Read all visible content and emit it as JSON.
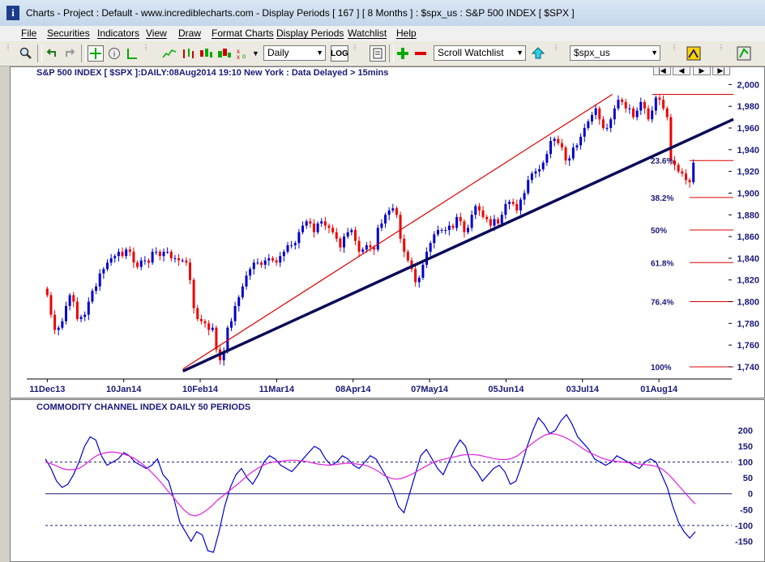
{
  "window": {
    "title": "Charts - Project : Default - www.incrediblecharts.com - Display Periods  [ 167 ]  [ 8 Months ] : $spx_us : S&P 500 INDEX  [ $SPX ]"
  },
  "menu": [
    "File",
    "Securities",
    "Indicators",
    "View",
    "Draw",
    "Format Charts",
    "Display Periods",
    "Watchlist",
    "Help"
  ],
  "toolbar": {
    "period_select": "Daily",
    "watchlist_select": "Scroll Watchlist",
    "security_select": "$spx_us",
    "icons": [
      "zoom-icon",
      "undo-icon",
      "redo-icon",
      "crosshair-icon",
      "info-icon",
      "trendline-icon",
      "line-chart-icon",
      "bar-chart-icon",
      "candlestick-icon",
      "equivolume-icon",
      "log-scale-icon",
      "page-icon",
      "add-security-icon",
      "remove-security-icon",
      "up-arrow-icon",
      "watchlist-tool-icon",
      "chart-tool-icon"
    ]
  },
  "navigation": [
    "|◀",
    "◀",
    "▶",
    "▶|"
  ],
  "pane_numbers": {
    "price": "1",
    "cci_top": "1",
    "cci_bottom": "2"
  },
  "chart_data": [
    {
      "type": "candlestick",
      "title": "S&P 500 INDEX [ $SPX ]:DAILY:08Aug2014 19:10 New York : Data Delayed > 15mins",
      "x_tick_labels": [
        "11Dec13",
        "10Jan14",
        "10Feb14",
        "11Mar14",
        "08Apr14",
        "07May14",
        "05Jun14",
        "03Jul14",
        "01Aug14"
      ],
      "y_tick_labels": [
        "1,740",
        "1,760",
        "1,780",
        "1,800",
        "1,820",
        "1,840",
        "1,860",
        "1,880",
        "1,900",
        "1,920",
        "1,940",
        "1,960",
        "1,980",
        "2,000"
      ],
      "ylim": [
        1734,
        2010
      ],
      "up_color": "#0000cc",
      "down_color": "#ee0000",
      "series": [
        {
          "closes": [
            1806,
            1788,
            1774,
            1776,
            1782,
            1796,
            1806,
            1800,
            1784,
            1786,
            1788,
            1800,
            1810,
            1814,
            1826,
            1830,
            1836,
            1840,
            1842,
            1846,
            1842,
            1848,
            1846,
            1836,
            1832,
            1838,
            1838,
            1836,
            1846,
            1846,
            1842,
            1846,
            1846,
            1840,
            1840,
            1838,
            1838,
            1836,
            1820,
            1794,
            1784,
            1782,
            1780,
            1774,
            1776,
            1756,
            1746,
            1754,
            1776,
            1782,
            1796,
            1804,
            1814,
            1824,
            1830,
            1836,
            1836,
            1834,
            1838,
            1840,
            1838,
            1836,
            1842,
            1846,
            1852,
            1852,
            1854,
            1864,
            1870,
            1874,
            1872,
            1864,
            1872,
            1874,
            1870,
            1868,
            1864,
            1858,
            1850,
            1860,
            1864,
            1866,
            1856,
            1846,
            1848,
            1852,
            1850,
            1848,
            1868,
            1872,
            1880,
            1884,
            1886,
            1880,
            1858,
            1846,
            1838,
            1830,
            1818,
            1822,
            1834,
            1846,
            1854,
            1862,
            1866,
            1866,
            1866,
            1870,
            1868,
            1878,
            1874,
            1864,
            1868,
            1880,
            1888,
            1884,
            1878,
            1876,
            1870,
            1876,
            1872,
            1880,
            1890,
            1892,
            1890,
            1884,
            1894,
            1900,
            1912,
            1918,
            1920,
            1922,
            1928,
            1936,
            1948,
            1950,
            1946,
            1942,
            1930,
            1932,
            1942,
            1944,
            1952,
            1960,
            1966,
            1972,
            1978,
            1968,
            1960,
            1960,
            1968,
            1978,
            1986,
            1984,
            1978,
            1978,
            1970,
            1976,
            1984,
            1978,
            1968,
            1976,
            1988,
            1986,
            1978,
            1970,
            1930,
            1926,
            1920,
            1918,
            1912,
            1910,
            1928
          ],
          "open_axis_trace": "open = previous close"
        }
      ],
      "fibonacci_levels": [
        {
          "label": "23.6%",
          "value": 1930
        },
        {
          "label": "38.2%",
          "value": 1896
        },
        {
          "label": "50%",
          "value": 1866
        },
        {
          "label": "61.8%",
          "value": 1836
        },
        {
          "label": "76.4%",
          "value": 1800
        },
        {
          "label": "100%",
          "value": 1740
        }
      ],
      "fib_high": 1991,
      "trendlines": [
        {
          "name": "",
          "color": "#0a0a5a",
          "from": {
            "bar": 48,
            "value": 1736
          },
          "to": {
            "bar": 220,
            "value": 1968
          }
        },
        {
          "name": "",
          "color": "#dd0000",
          "from": {
            "bar": 48,
            "value": 1738
          },
          "to": {
            "bar": 200,
            "value": 1991
          }
        }
      ]
    },
    {
      "type": "line",
      "title": "COMMODITY CHANNEL INDEX DAILY 50 PERIODS",
      "y_tick_labels": [
        "200",
        "150",
        "100",
        "50",
        "0",
        "-50",
        "-100",
        "-150"
      ],
      "ylim": [
        -190,
        250
      ],
      "reference_lines": [
        100,
        0,
        -100
      ],
      "series": [
        {
          "color": "#0000cc",
          "values": [
            110,
            80,
            40,
            20,
            30,
            60,
            100,
            150,
            180,
            170,
            120,
            90,
            100,
            110,
            130,
            120,
            100,
            90,
            80,
            90,
            110,
            60,
            40,
            -20,
            -90,
            -120,
            -150,
            -120,
            -130,
            -180,
            -185,
            -120,
            -40,
            20,
            60,
            80,
            50,
            30,
            60,
            100,
            120,
            110,
            90,
            80,
            70,
            90,
            110,
            130,
            150,
            140,
            110,
            90,
            100,
            120,
            110,
            90,
            80,
            100,
            120,
            110,
            80,
            50,
            10,
            -40,
            -60,
            0,
            60,
            120,
            140,
            110,
            80,
            60,
            100,
            140,
            170,
            150,
            90,
            70,
            40,
            60,
            80,
            90,
            70,
            30,
            40,
            90,
            150,
            200,
            240,
            220,
            190,
            200,
            230,
            250,
            220,
            180,
            160,
            140,
            110,
            100,
            90,
            100,
            120,
            110,
            100,
            90,
            80,
            100,
            110,
            100,
            60,
            20,
            -40,
            -90,
            -120,
            -140,
            -120
          ]
        },
        {
          "color": "#e020e0",
          "values": [
            100,
            95,
            88,
            80,
            76,
            76,
            80,
            90,
            105,
            118,
            126,
            130,
            132,
            130,
            126,
            120,
            112,
            100,
            86,
            70,
            52,
            32,
            10,
            -10,
            -32,
            -52,
            -66,
            -70,
            -64,
            -52,
            -38,
            -20,
            -6,
            8,
            22,
            36,
            52,
            66,
            78,
            88,
            96,
            100,
            102,
            104,
            106,
            106,
            104,
            102,
            98,
            94,
            92,
            90,
            92,
            94,
            96,
            96,
            94,
            92,
            88,
            80,
            70,
            58,
            50,
            46,
            48,
            54,
            62,
            72,
            82,
            92,
            100,
            106,
            110,
            114,
            118,
            122,
            124,
            124,
            122,
            118,
            114,
            110,
            108,
            108,
            112,
            120,
            134,
            150,
            164,
            176,
            186,
            190,
            188,
            182,
            174,
            164,
            152,
            140,
            130,
            122,
            114,
            108,
            104,
            102,
            100,
            98,
            96,
            94,
            92,
            90,
            86,
            78,
            64,
            46,
            26,
            6,
            -14,
            -32
          ]
        }
      ]
    }
  ]
}
